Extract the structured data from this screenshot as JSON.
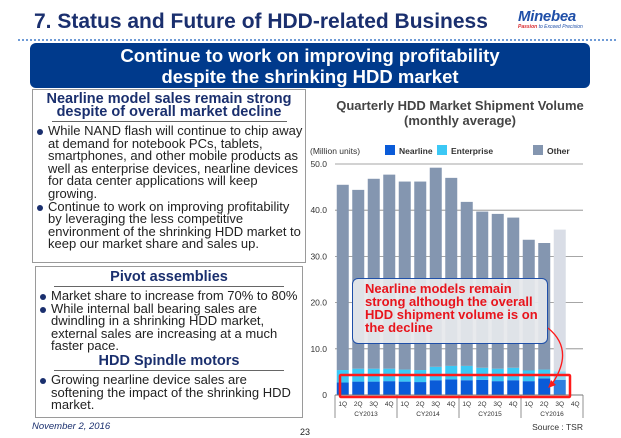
{
  "header": {
    "title": "7. Status and Future of HDD-related Business",
    "logo_name": "Minebea",
    "logo_tagline_a": "Passion",
    "logo_tagline_b": " to Exceed Precision"
  },
  "banner": {
    "line1": "Continue to work on improving profitability",
    "line2": "despite the shrinking HDD market"
  },
  "box1": {
    "heading_line1": "Nearline model sales remain strong",
    "heading_line2": "despite  of overall market decline",
    "bullets": [
      "While NAND flash will continue to chip away at demand for notebook PCs, tablets, smartphones, and other mobile products as well as enterprise devices, nearline devices for data center applications will keep growing.",
      "Continue to work on improving profitability by leveraging the less competitive environment of the shrinking HDD market to keep our market share and sales up."
    ]
  },
  "box2": {
    "heading1": "Pivot assemblies",
    "bullets1": [
      "Market share to increase from 70% to 80%",
      "While internal ball bearing sales are dwindling in a shrinking HDD market, external sales are increasing at a much faster pace."
    ],
    "heading2": "HDD Spindle motors",
    "bullets2": [
      "Growing nearline device sales are softening the impact of the shrinking HDD market."
    ]
  },
  "footer": {
    "date": "November 2, 2016",
    "page": "23"
  },
  "chart_data": {
    "type": "bar",
    "stacked": true,
    "title": "Quarterly HDD Market Shipment Volume",
    "subtitle": "(monthly average)",
    "ylabel": "(Million units)",
    "ylim": [
      0,
      50
    ],
    "yticks": [
      "0",
      "10.0",
      "20.0",
      "30.0",
      "40.0",
      "50.0"
    ],
    "grid": true,
    "legend": "top",
    "categories": [
      "1Q",
      "2Q",
      "3Q",
      "4Q",
      "1Q",
      "2Q",
      "3Q",
      "4Q",
      "1Q",
      "2Q",
      "3Q",
      "4Q",
      "1Q",
      "2Q",
      "3Q",
      "4Q"
    ],
    "groups": [
      "CY2013",
      "CY2014",
      "CY2015",
      "CY2016"
    ],
    "series": [
      {
        "name": "Nearline",
        "color": "#0a5bd8",
        "values": [
          2.7,
          2.9,
          2.9,
          3.0,
          2.9,
          2.8,
          3.2,
          3.4,
          3.2,
          3.3,
          3.0,
          3.2,
          3.0,
          3.6,
          3.3,
          null
        ]
      },
      {
        "name": "Enterprise",
        "color": "#3cc8f5",
        "values": [
          2.7,
          2.8,
          2.8,
          2.7,
          2.6,
          2.6,
          2.9,
          2.9,
          3.1,
          2.6,
          2.7,
          2.7,
          2.3,
          1.9,
          1.8,
          null
        ]
      },
      {
        "name": "Other",
        "color": "#8496b0",
        "values": [
          40.1,
          38.7,
          41.1,
          42.0,
          40.7,
          40.8,
          43.1,
          40.7,
          35.5,
          33.8,
          33.5,
          32.5,
          28.3,
          27.4,
          30.7,
          null
        ]
      }
    ],
    "forecast_categories": [
      "3Q CY2016"
    ],
    "source": "Source : TSR",
    "annotation": "Nearline models remain strong although the overall HDD shipment volume is on the decline"
  }
}
